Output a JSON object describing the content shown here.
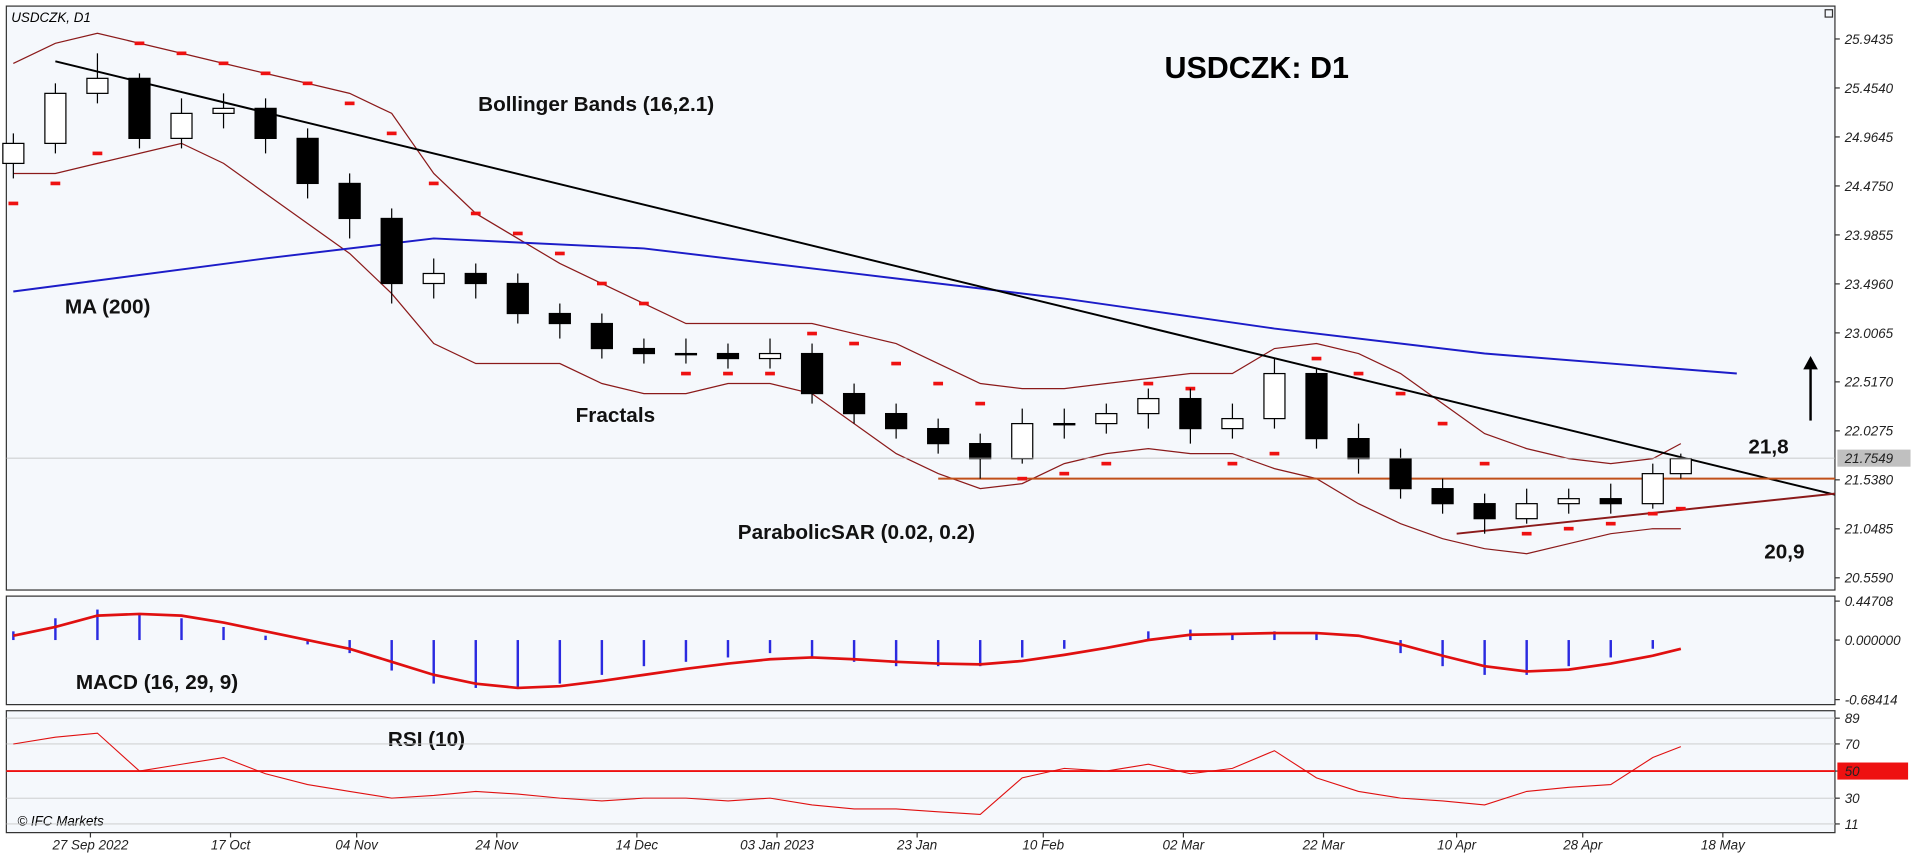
{
  "chart_data": [
    {
      "type": "candlestick",
      "title": "USDCZK: D1",
      "subtitle": "USDCZK, D1",
      "source": "© IFC Markets",
      "x": [
        "2022-09-16",
        "2022-09-22",
        "2022-09-28",
        "2022-10-04",
        "2022-10-10",
        "2022-10-16",
        "2022-10-22",
        "2022-10-28",
        "2022-11-03",
        "2022-11-09",
        "2022-11-15",
        "2022-11-21",
        "2022-11-27",
        "2022-12-03",
        "2022-12-09",
        "2022-12-15",
        "2022-12-21",
        "2022-12-27",
        "2023-01-02",
        "2023-01-08",
        "2023-01-14",
        "2023-01-20",
        "2023-01-26",
        "2023-02-01",
        "2023-02-07",
        "2023-02-13",
        "2023-02-19",
        "2023-02-25",
        "2023-03-03",
        "2023-03-09",
        "2023-03-15",
        "2023-03-21",
        "2023-03-27",
        "2023-04-02",
        "2023-04-08",
        "2023-04-14",
        "2023-04-20",
        "2023-04-26",
        "2023-05-02",
        "2023-05-08",
        "2023-05-12"
      ],
      "open": [
        24.7,
        24.9,
        25.4,
        25.55,
        24.95,
        25.2,
        25.25,
        24.95,
        24.5,
        24.15,
        23.5,
        23.6,
        23.5,
        23.2,
        23.1,
        22.85,
        22.8,
        22.8,
        22.75,
        22.8,
        22.4,
        22.2,
        22.05,
        21.9,
        21.75,
        22.1,
        22.1,
        22.2,
        22.35,
        22.05,
        22.15,
        22.6,
        21.95,
        21.75,
        21.45,
        21.3,
        21.15,
        21.3,
        21.35,
        21.3,
        21.6
      ],
      "high": [
        25.0,
        25.5,
        25.8,
        25.6,
        25.35,
        25.4,
        25.35,
        25.05,
        24.6,
        24.25,
        23.75,
        23.7,
        23.6,
        23.3,
        23.2,
        22.95,
        22.95,
        22.9,
        22.95,
        22.9,
        22.5,
        22.3,
        22.15,
        22.0,
        22.25,
        22.25,
        22.3,
        22.45,
        22.45,
        22.3,
        22.75,
        22.65,
        22.1,
        21.85,
        21.55,
        21.4,
        21.45,
        21.45,
        21.5,
        21.7,
        21.8
      ],
      "low": [
        24.55,
        24.8,
        25.3,
        24.85,
        24.85,
        25.05,
        24.8,
        24.35,
        23.95,
        23.3,
        23.35,
        23.35,
        23.1,
        22.95,
        22.75,
        22.7,
        22.7,
        22.65,
        22.65,
        22.3,
        22.1,
        21.95,
        21.8,
        21.55,
        21.7,
        21.95,
        22.0,
        22.05,
        21.9,
        21.95,
        22.05,
        21.85,
        21.6,
        21.35,
        21.2,
        21.0,
        21.1,
        21.2,
        21.2,
        21.25,
        21.55
      ],
      "close": [
        24.9,
        25.4,
        25.55,
        24.95,
        25.2,
        25.25,
        24.95,
        24.5,
        24.15,
        23.5,
        23.6,
        23.5,
        23.2,
        23.1,
        22.85,
        22.8,
        22.8,
        22.75,
        22.8,
        22.4,
        22.2,
        22.05,
        21.9,
        21.75,
        22.1,
        22.1,
        22.2,
        22.35,
        22.05,
        22.15,
        22.6,
        21.95,
        21.75,
        21.45,
        21.3,
        21.15,
        21.3,
        21.35,
        21.3,
        21.6,
        21.75
      ],
      "bands": {
        "name": "Bollinger Bands (16,2.1)",
        "color": "#8b1a1a",
        "upper": [
          25.7,
          25.9,
          26.0,
          25.9,
          25.8,
          25.7,
          25.6,
          25.5,
          25.4,
          25.2,
          24.6,
          24.2,
          23.95,
          23.7,
          23.5,
          23.3,
          23.1,
          23.1,
          23.1,
          23.1,
          23.0,
          22.9,
          22.7,
          22.5,
          22.45,
          22.45,
          22.5,
          22.55,
          22.6,
          22.6,
          22.85,
          22.9,
          22.8,
          22.6,
          22.3,
          22.0,
          21.85,
          21.75,
          21.7,
          21.75,
          21.9
        ],
        "lower": [
          24.6,
          24.6,
          24.7,
          24.8,
          24.9,
          24.7,
          24.4,
          24.1,
          23.8,
          23.4,
          22.9,
          22.7,
          22.7,
          22.7,
          22.5,
          22.4,
          22.4,
          22.5,
          22.5,
          22.4,
          22.1,
          21.8,
          21.6,
          21.45,
          21.5,
          21.7,
          21.8,
          21.85,
          21.8,
          21.8,
          21.65,
          21.55,
          21.3,
          21.1,
          20.95,
          20.85,
          20.8,
          20.9,
          21.0,
          21.05,
          21.05
        ]
      },
      "sar": {
        "name": "ParabolicSAR (0.02, 0.2)",
        "color": "#ee1111",
        "values": [
          24.3,
          24.5,
          24.8,
          25.9,
          25.8,
          25.7,
          25.6,
          25.5,
          25.3,
          25.0,
          24.5,
          24.2,
          24.0,
          23.8,
          23.5,
          23.3,
          22.6,
          22.6,
          22.6,
          23.0,
          22.9,
          22.7,
          22.5,
          22.3,
          21.55,
          21.6,
          21.7,
          22.5,
          22.45,
          21.7,
          21.8,
          22.75,
          22.6,
          22.4,
          22.1,
          21.7,
          21.0,
          21.05,
          21.1,
          21.2,
          21.25
        ]
      },
      "ma": {
        "name": "MA (200)",
        "color": "#1c1cc8",
        "x": [
          "2022-09-16",
          "2022-10-22",
          "2022-11-15",
          "2022-12-15",
          "2023-01-14",
          "2023-02-13",
          "2023-03-15",
          "2023-04-14",
          "2023-05-20"
        ],
        "values": [
          23.42,
          23.75,
          23.95,
          23.85,
          23.6,
          23.35,
          23.05,
          22.8,
          22.6
        ]
      },
      "trendlines": [
        {
          "color": "#000000",
          "x": [
            "2022-09-22",
            "2023-06-03"
          ],
          "values": [
            25.72,
            21.39
          ]
        },
        {
          "color": "#c0501a",
          "x": [
            "2023-01-26",
            "2023-06-03"
          ],
          "values": [
            21.55,
            21.55
          ]
        },
        {
          "color": "#8b1a1a",
          "x": [
            "2023-04-10",
            "2023-06-03"
          ],
          "values": [
            21.0,
            21.4
          ]
        }
      ],
      "annotations": [
        "Fractals",
        "21,8",
        "20,9"
      ],
      "last_price": 21.7549,
      "xlim": [
        "2022-09-15",
        "2023-06-03"
      ],
      "xticks": [
        {
          "value": "2022-09-27",
          "label": "27 Sep 2022"
        },
        {
          "value": "2022-10-17",
          "label": "17 Oct"
        },
        {
          "value": "2022-11-04",
          "label": "04 Nov"
        },
        {
          "value": "2022-11-24",
          "label": "24 Nov"
        },
        {
          "value": "2022-12-14",
          "label": "14 Dec"
        },
        {
          "value": "2023-01-03",
          "label": "03 Jan 2023"
        },
        {
          "value": "2023-01-23",
          "label": "23 Jan"
        },
        {
          "value": "2023-02-10",
          "label": "10 Feb"
        },
        {
          "value": "2023-03-02",
          "label": "02 Mar"
        },
        {
          "value": "2023-03-22",
          "label": "22 Mar"
        },
        {
          "value": "2023-04-10",
          "label": "10 Apr"
        },
        {
          "value": "2023-04-28",
          "label": "28 Apr"
        },
        {
          "value": "2023-05-18",
          "label": "18 May"
        }
      ],
      "ylim": [
        20.437,
        26.272
      ],
      "yticks": [
        25.9435,
        {
          "value": 25.454,
          "label": "25.4540"
        },
        24.9645,
        {
          "value": 24.475,
          "label": "24.4750"
        },
        23.9855,
        {
          "value": 23.496,
          "label": "23.4960"
        },
        23.0065,
        {
          "value": 22.517,
          "label": "22.5170"
        },
        22.0275,
        {
          "value": 21.538,
          "label": "21.5380"
        },
        21.0485,
        {
          "value": 20.559,
          "label": "20.5590"
        }
      ]
    },
    {
      "type": "macd",
      "title": "MACD (16, 29, 9)",
      "histogram": {
        "color": "#2a2ae0",
        "values": [
          0.1,
          0.25,
          0.35,
          0.3,
          0.25,
          0.15,
          0.05,
          -0.05,
          -0.15,
          -0.35,
          -0.5,
          -0.55,
          -0.55,
          -0.5,
          -0.4,
          -0.3,
          -0.25,
          -0.2,
          -0.15,
          -0.2,
          -0.25,
          -0.3,
          -0.3,
          -0.3,
          -0.2,
          -0.1,
          0,
          0.1,
          0.12,
          0.08,
          0.1,
          0.08,
          0,
          -0.15,
          -0.3,
          -0.4,
          -0.4,
          -0.3,
          -0.2,
          -0.1,
          0
        ]
      },
      "signal": {
        "color": "#e01010",
        "values": [
          0.05,
          0.15,
          0.28,
          0.3,
          0.28,
          0.2,
          0.1,
          0,
          -0.1,
          -0.25,
          -0.4,
          -0.5,
          -0.55,
          -0.53,
          -0.47,
          -0.4,
          -0.33,
          -0.27,
          -0.22,
          -0.2,
          -0.22,
          -0.25,
          -0.27,
          -0.28,
          -0.24,
          -0.17,
          -0.09,
          0,
          0.06,
          0.07,
          0.08,
          0.08,
          0.05,
          -0.05,
          -0.18,
          -0.3,
          -0.36,
          -0.34,
          -0.27,
          -0.18,
          -0.1
        ]
      },
      "ylim": [
        -0.7414,
        0.5044
      ],
      "yticks": [
        0.44708,
        {
          "value": 0,
          "label": "0.000000"
        },
        -0.68414
      ]
    },
    {
      "type": "rsi",
      "title": "RSI (10)",
      "color": "#e01010",
      "values": [
        70,
        75,
        78,
        50,
        55,
        60,
        48,
        40,
        35,
        30,
        32,
        35,
        33,
        30,
        28,
        30,
        30,
        28,
        30,
        25,
        22,
        22,
        20,
        18,
        45,
        52,
        50,
        55,
        48,
        52,
        65,
        45,
        35,
        30,
        28,
        25,
        35,
        38,
        40,
        60,
        68
      ],
      "level": 50,
      "level_color": "#ee1111",
      "grid": true,
      "ylim": [
        4.6,
        94.5
      ],
      "yticks": [
        89,
        70,
        50,
        30,
        11
      ]
    }
  ]
}
